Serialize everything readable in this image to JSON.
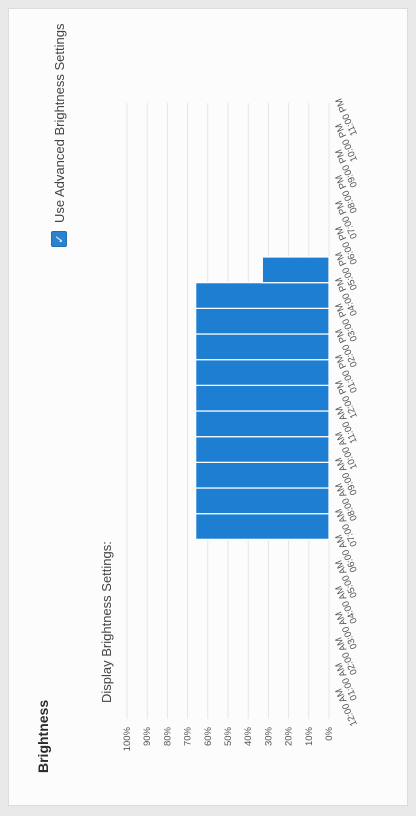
{
  "panel": {
    "title": "Brightness",
    "subtitle": "Display Brightness Settings:",
    "advanced_checkbox": {
      "label": "Use Advanced Brightness Settings",
      "checked": true
    }
  },
  "colors": {
    "bar": "#1e7fd2",
    "grid": "#e6e6e6",
    "accent": "#2a83cf"
  },
  "chart_data": {
    "type": "bar",
    "ylim": [
      0,
      100
    ],
    "y_ticks": [
      "0%",
      "10%",
      "20%",
      "30%",
      "40%",
      "50%",
      "60%",
      "70%",
      "80%",
      "90%",
      "100%"
    ],
    "categories": [
      "12:00 AM",
      "01:00 AM",
      "02:00 AM",
      "03:00 AM",
      "04:00 AM",
      "05:00 AM",
      "06:00 AM",
      "07:00 AM",
      "08:00 AM",
      "09:00 AM",
      "10:00 AM",
      "11:00 AM",
      "12:00 PM",
      "01:00 PM",
      "02:00 PM",
      "03:00 PM",
      "04:00 PM",
      "05:00 PM",
      "06:00 PM",
      "07:00 PM",
      "08:00 PM",
      "09:00 PM",
      "10:00 PM",
      "11:00 PM"
    ],
    "values": [
      0,
      0,
      0,
      0,
      0,
      0,
      0,
      66,
      66,
      66,
      66,
      66,
      66,
      66,
      66,
      66,
      66,
      33,
      0,
      0,
      0,
      0,
      0,
      0
    ],
    "grid": true
  }
}
